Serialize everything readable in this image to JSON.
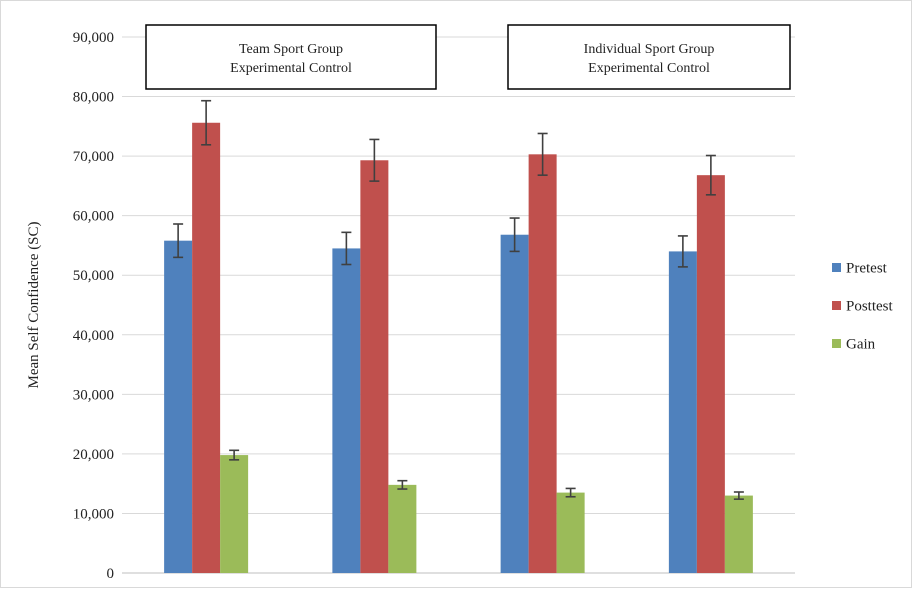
{
  "chart_data": {
    "type": "bar",
    "title": "",
    "xlabel": "",
    "ylabel": "Mean Self Confidence (SC)",
    "ylim": [
      0,
      90000
    ],
    "yticks": [
      0,
      10000,
      20000,
      30000,
      40000,
      50000,
      60000,
      70000,
      80000,
      90000
    ],
    "ytick_labels": [
      "0",
      "10,000",
      "20,000",
      "30,000",
      "40,000",
      "50,000",
      "60,000",
      "70,000",
      "80,000",
      "90,000"
    ],
    "grid": true,
    "legend_position": "right",
    "categories": [
      "",
      "",
      "",
      ""
    ],
    "series": [
      {
        "name": "Pretest",
        "color": "#4f81bd",
        "values": [
          55800,
          54500,
          56800,
          54000
        ],
        "errors": [
          2800,
          2700,
          2800,
          2600
        ]
      },
      {
        "name": "Posttest",
        "color": "#c0504d",
        "values": [
          75600,
          69300,
          70300,
          66800
        ],
        "errors": [
          3700,
          3500,
          3500,
          3300
        ]
      },
      {
        "name": "Gain",
        "color": "#9bbb59",
        "values": [
          19800,
          14800,
          13500,
          13000
        ],
        "errors": [
          800,
          700,
          700,
          600
        ]
      }
    ],
    "group_boxes": [
      {
        "line1": "Team Sport Group",
        "line2": "Experimental Control"
      },
      {
        "line1": "Individual Sport Group",
        "line2": "Experimental Control"
      }
    ]
  }
}
